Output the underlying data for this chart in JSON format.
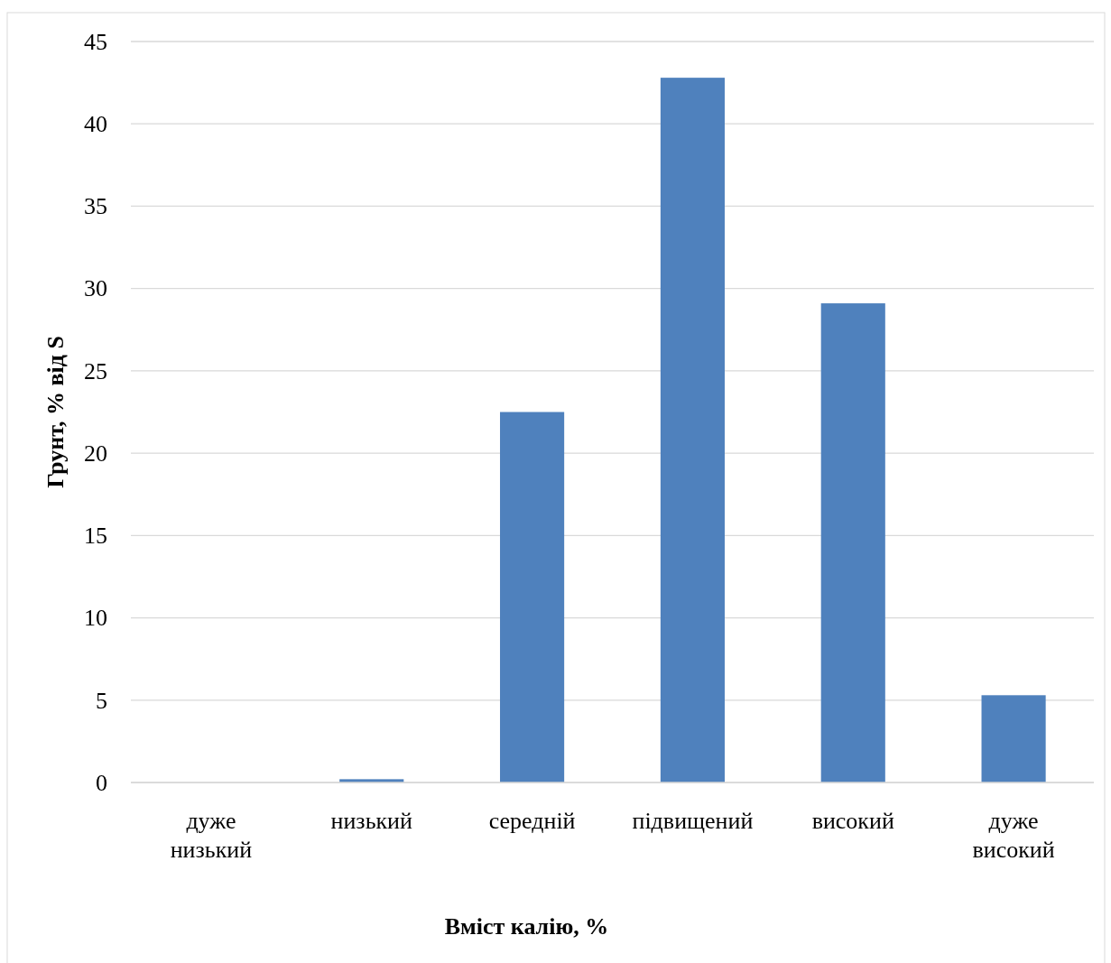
{
  "chart_data": {
    "type": "bar",
    "xlabel": "Вміст калію, %",
    "ylabel": "Грунт, % від S",
    "categories": [
      "дуже низький",
      "низький",
      "середній",
      "підвищений",
      "високий",
      "дуже високий"
    ],
    "values": [
      0,
      0.2,
      22.5,
      42.8,
      29.1,
      5.3
    ],
    "color": "#4f81bd",
    "ylim": [
      0,
      45
    ],
    "yticks": [
      0,
      5,
      10,
      15,
      20,
      25,
      30,
      35,
      40,
      45
    ],
    "grid": "y"
  }
}
